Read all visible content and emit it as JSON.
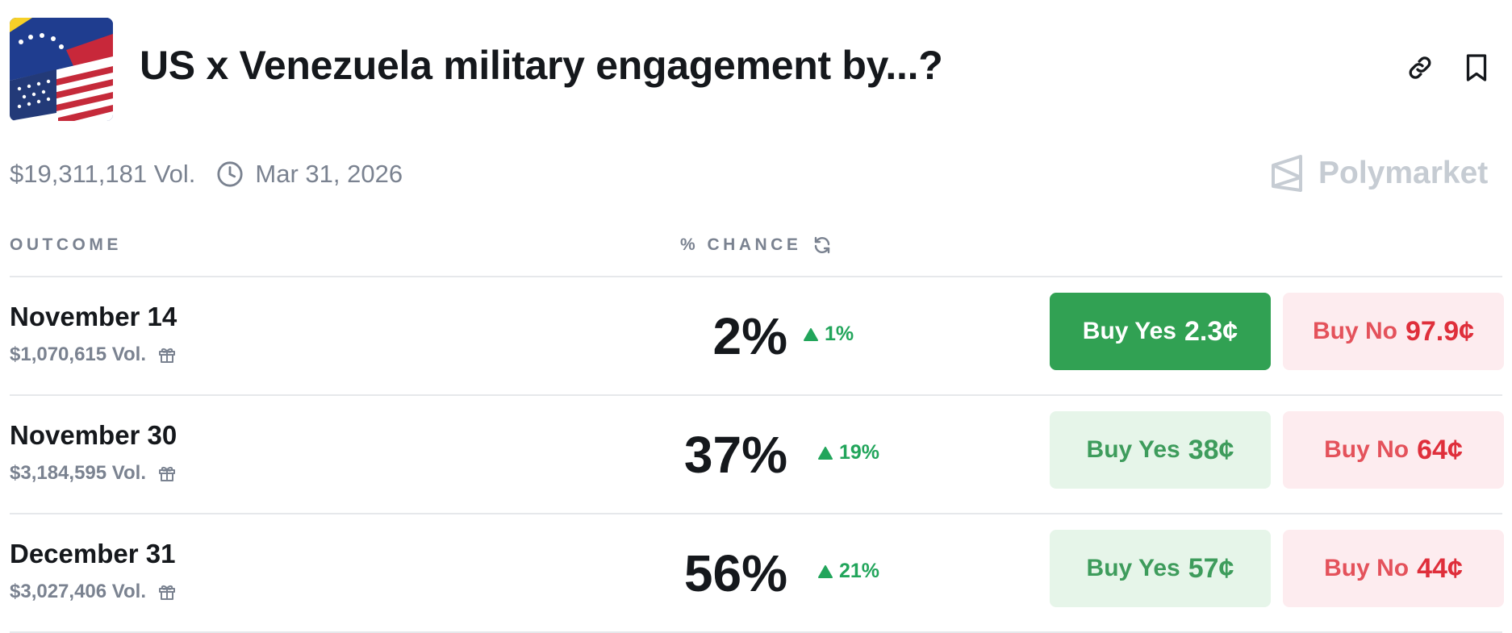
{
  "header": {
    "title": "US x Venezuela military engagement by...?"
  },
  "meta": {
    "volume": "$19,311,181 Vol.",
    "end_date": "Mar 31, 2026",
    "brand": "Polymarket"
  },
  "table": {
    "col_outcome": "OUTCOME",
    "col_chance": "% CHANCE",
    "rows": [
      {
        "name": "November 14",
        "volume": "$1,070,615 Vol.",
        "chance": "2%",
        "delta": "1%",
        "yes_label": "Buy Yes",
        "yes_price": "2.3¢",
        "no_label": "Buy No",
        "no_price": "97.9¢",
        "yes_selected": true
      },
      {
        "name": "November 30",
        "volume": "$3,184,595 Vol.",
        "chance": "37%",
        "delta": "19%",
        "yes_label": "Buy Yes",
        "yes_price": "38¢",
        "no_label": "Buy No",
        "no_price": "64¢",
        "yes_selected": false
      },
      {
        "name": "December 31",
        "volume": "$3,027,406 Vol.",
        "chance": "56%",
        "delta": "21%",
        "yes_label": "Buy Yes",
        "yes_price": "57¢",
        "no_label": "Buy No",
        "no_price": "44¢",
        "yes_selected": false
      }
    ]
  },
  "icons": {
    "link": "link-icon",
    "bookmark": "bookmark-icon",
    "clock": "clock-icon",
    "refresh": "refresh-icon",
    "gift": "gift-icon",
    "trend_up": "triangle-up-icon",
    "brand": "polymarket-logo-icon"
  },
  "colors": {
    "yes_active": "#31a153",
    "yes_light": "#e6f5e9",
    "no_light": "#fdecef",
    "no_text": "#df2f3b",
    "up": "#22a55b",
    "muted": "#7a8290"
  }
}
